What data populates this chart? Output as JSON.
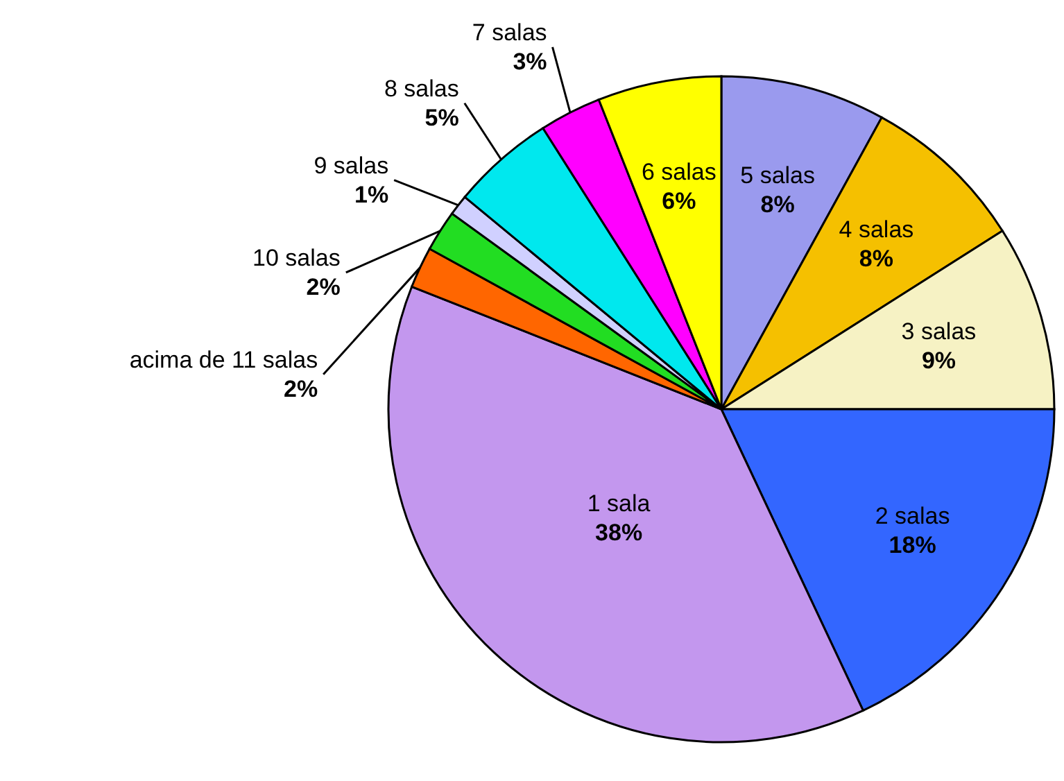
{
  "chart_data": {
    "type": "pie",
    "categories": [
      "5 salas",
      "4 salas",
      "3 salas",
      "2 salas",
      "1 sala",
      "acima de 11 salas",
      "10 salas",
      "9 salas",
      "8 salas",
      "7 salas",
      "6 salas"
    ],
    "values": [
      8,
      8,
      9,
      18,
      38,
      2,
      2,
      1,
      5,
      3,
      6
    ],
    "value_labels": [
      "8%",
      "8%",
      "9%",
      "18%",
      "38%",
      "2%",
      "2%",
      "1%",
      "5%",
      "3%",
      "6%"
    ],
    "colors": [
      "#9a9aee",
      "#f5c000",
      "#f6f2c4",
      "#3366ff",
      "#c397ee",
      "#ff6600",
      "#22dd22",
      "#d0d0ff",
      "#00e8ee",
      "#ff00ff",
      "#ffff00"
    ]
  }
}
